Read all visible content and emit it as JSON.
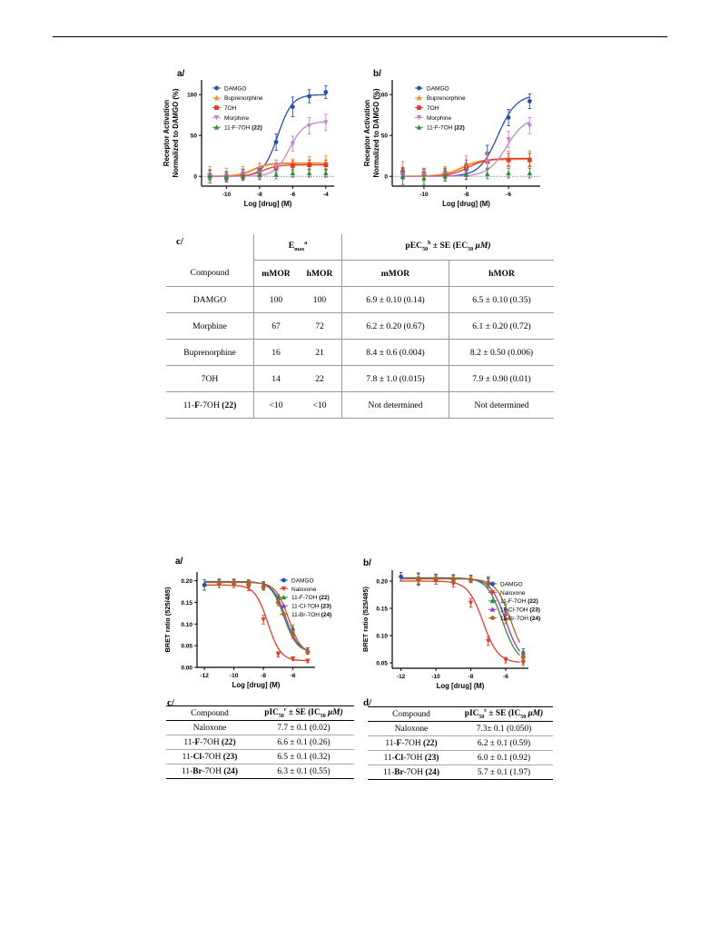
{
  "panels_top": {
    "a": {
      "label": "a/",
      "ylabel1": "Receptor Activation",
      "ylabel2": "Normalized to DAMGO (%)",
      "xlabel": "Log [drug] (M)",
      "legend": [
        "DAMGO",
        "Buprenorphine",
        "7OH",
        "Morphine",
        "11-F-7OH (22)"
      ]
    },
    "b": {
      "label": "b/",
      "ylabel1": "Receptor Activation",
      "ylabel2": "Normalized to DAMGO (%)",
      "xlabel": "Log [drug] (M)",
      "legend": [
        "DAMGO",
        "Buprenorphine",
        "7OH",
        "Morphine",
        "11-F-7OH (22)"
      ]
    }
  },
  "panels_bottom": {
    "a": {
      "label": "a/",
      "ylabel": "BRET ratio (525/485)",
      "xlabel": "Log [drug] (M)",
      "legend": [
        "DAMGO",
        "Naloxone",
        "11-F-7OH (22)",
        "11-Cl-7OH (23)",
        "11-Br-7OH (24)"
      ]
    },
    "b": {
      "label": "b/",
      "ylabel": "BRET ratio (525/485)",
      "xlabel": "Log [drug] (M)",
      "legend": [
        "DAMGO",
        "Naloxone",
        "11-F-7OH (22)",
        "11-Cl-7OH (23)",
        "11-Br-7OH (24)"
      ]
    }
  },
  "colors": {
    "damgo": "#2b4fa8",
    "buprenorphine": "#f08a2c",
    "oh7": "#e03c2c",
    "morphine": "#c085cf",
    "f7oh": "#2e8b3a",
    "cl7oh": "#8e3bb5",
    "br7oh": "#b0651e"
  },
  "chart_data": [
    {
      "type": "line",
      "panel": "a/",
      "xlabel": "Log [drug] (M)",
      "ylabel": "Receptor Activation Normalized to DAMGO (%)",
      "xlim": [
        -11.5,
        -3.5
      ],
      "ylim": [
        -12,
        118
      ],
      "xticks": [
        -10,
        -8,
        -6,
        -4
      ],
      "yticks": [
        0,
        50,
        100
      ],
      "legend_position": "top-left",
      "series": [
        {
          "name": "DAMGO",
          "x": [
            -11,
            -10,
            -9,
            -8,
            -7,
            -6,
            -5,
            -4
          ],
          "y": [
            2,
            1,
            3,
            8,
            42,
            85,
            98,
            103
          ],
          "err": [
            6,
            5,
            6,
            8,
            10,
            12,
            8,
            8
          ]
        },
        {
          "name": "Buprenorphine",
          "x": [
            -11,
            -10,
            -9,
            -8,
            -7,
            -6,
            -5,
            -4
          ],
          "y": [
            2,
            2,
            4,
            8,
            12,
            14,
            16,
            16
          ],
          "err": [
            10,
            8,
            8,
            8,
            8,
            7,
            8,
            9
          ]
        },
        {
          "name": "7OH",
          "x": [
            -11,
            -10,
            -9,
            -8,
            -7,
            -6,
            -5,
            -4
          ],
          "y": [
            1,
            0,
            2,
            5,
            10,
            13,
            14,
            14
          ],
          "err": [
            6,
            5,
            5,
            6,
            6,
            6,
            6,
            6
          ]
        },
        {
          "name": "Morphine",
          "x": [
            -11,
            -10,
            -9,
            -8,
            -7,
            -6,
            -5,
            -4
          ],
          "y": [
            1,
            0,
            2,
            4,
            12,
            40,
            62,
            66
          ],
          "err": [
            6,
            6,
            6,
            7,
            8,
            9,
            10,
            10
          ]
        },
        {
          "name": "11-F-7OH (22)",
          "x": [
            -11,
            -10,
            -9,
            -8,
            -7,
            -6,
            -5,
            -4
          ],
          "y": [
            0,
            -1,
            0,
            2,
            2,
            4,
            4,
            4
          ],
          "err": [
            8,
            6,
            5,
            6,
            5,
            5,
            5,
            5
          ]
        }
      ],
      "fits": {
        "DAMGO": {
          "top": 100,
          "ec50": -6.9
        },
        "Buprenorphine": {
          "top": 16,
          "ec50": -8.4
        },
        "7OH": {
          "top": 14,
          "ec50": -7.8
        },
        "Morphine": {
          "top": 67,
          "ec50": -6.2
        }
      }
    },
    {
      "type": "line",
      "panel": "b/",
      "xlabel": "Log [drug] (M)",
      "ylabel": "Receptor Activation Normalized to DAMGO (%)",
      "xlim": [
        -11.5,
        -4.5
      ],
      "ylim": [
        -12,
        118
      ],
      "xticks": [
        -10,
        -8,
        -6
      ],
      "yticks": [
        0,
        50,
        100
      ],
      "legend_position": "top-left",
      "series": [
        {
          "name": "DAMGO",
          "x": [
            -11,
            -10,
            -9,
            -8,
            -7,
            -6,
            -5
          ],
          "y": [
            3,
            2,
            4,
            8,
            28,
            72,
            92
          ],
          "err": [
            6,
            6,
            6,
            8,
            10,
            10,
            9
          ]
        },
        {
          "name": "Buprenorphine",
          "x": [
            -11,
            -10,
            -9,
            -8,
            -7,
            -6,
            -5
          ],
          "y": [
            8,
            2,
            4,
            15,
            20,
            22,
            22
          ],
          "err": [
            10,
            8,
            8,
            10,
            10,
            9,
            9
          ]
        },
        {
          "name": "7OH",
          "x": [
            -11,
            -10,
            -9,
            -8,
            -7,
            -6,
            -5
          ],
          "y": [
            5,
            3,
            4,
            12,
            18,
            20,
            20
          ],
          "err": [
            6,
            6,
            6,
            8,
            8,
            8,
            8
          ]
        },
        {
          "name": "Morphine",
          "x": [
            -11,
            -10,
            -9,
            -8,
            -7,
            -6,
            -5
          ],
          "y": [
            2,
            2,
            3,
            5,
            18,
            45,
            62
          ],
          "err": [
            6,
            6,
            6,
            8,
            10,
            10,
            10
          ]
        },
        {
          "name": "11-F-7OH (22)",
          "x": [
            -11,
            -10,
            -9,
            -8,
            -7,
            -6,
            -5
          ],
          "y": [
            0,
            -2,
            1,
            2,
            3,
            4,
            4
          ],
          "err": [
            10,
            8,
            7,
            6,
            6,
            6,
            6
          ]
        }
      ],
      "fits": {
        "DAMGO": {
          "top": 100,
          "ec50": -6.5
        },
        "Buprenorphine": {
          "top": 21,
          "ec50": -8.2
        },
        "7OH": {
          "top": 22,
          "ec50": -7.9
        },
        "Morphine": {
          "top": 72,
          "ec50": -6.1
        }
      }
    },
    {
      "type": "line",
      "panel": "a/",
      "xlabel": "Log [drug] (M)",
      "ylabel": "BRET ratio (525/485)",
      "xlim": [
        -12.5,
        -4.5
      ],
      "ylim": [
        0.0,
        0.22
      ],
      "xticks": [
        -12,
        -10,
        -8,
        -6
      ],
      "yticks": [
        0.0,
        0.05,
        0.1,
        0.15,
        0.2
      ],
      "legend_position": "top-right",
      "series": [
        {
          "name": "DAMGO",
          "x": [
            -12
          ],
          "y": [
            0.19
          ],
          "err": [
            0.012
          ]
        },
        {
          "name": "Naloxone",
          "x": [
            -11,
            -10,
            -9,
            -8,
            -7,
            -6,
            -5
          ],
          "y": [
            0.19,
            0.19,
            0.185,
            0.11,
            0.03,
            0.02,
            0.015
          ],
          "err": [
            0.006,
            0.006,
            0.008,
            0.01,
            0.006,
            0.004,
            0.004
          ]
        },
        {
          "name": "11-F-7OH (22)",
          "x": [
            -11,
            -10,
            -9,
            -8,
            -7,
            -6,
            -5
          ],
          "y": [
            0.198,
            0.198,
            0.196,
            0.19,
            0.16,
            0.09,
            0.04
          ],
          "err": [
            0.006,
            0.006,
            0.006,
            0.008,
            0.008,
            0.008,
            0.005
          ]
        },
        {
          "name": "11-Cl-7OH (23)",
          "x": [
            -11,
            -10,
            -9,
            -8,
            -7,
            -6,
            -5
          ],
          "y": [
            0.197,
            0.197,
            0.195,
            0.188,
            0.155,
            0.08,
            0.04
          ],
          "err": [
            0.006,
            0.006,
            0.006,
            0.008,
            0.008,
            0.008,
            0.005
          ]
        },
        {
          "name": "11-Br-7OH (24)",
          "x": [
            -11,
            -10,
            -9,
            -8,
            -7,
            -6,
            -5
          ],
          "y": [
            0.196,
            0.196,
            0.194,
            0.186,
            0.15,
            0.075,
            0.035
          ],
          "err": [
            0.006,
            0.006,
            0.006,
            0.008,
            0.008,
            0.008,
            0.005
          ]
        }
      ],
      "fits": {
        "Naloxone": {
          "top": 0.19,
          "bottom": 0.015,
          "ic50": -7.7
        },
        "11-F-7OH (22)": {
          "top": 0.198,
          "bottom": 0.035,
          "ic50": -6.6
        },
        "11-Cl-7OH (23)": {
          "top": 0.197,
          "bottom": 0.035,
          "ic50": -6.5
        },
        "11-Br-7OH (24)": {
          "top": 0.196,
          "bottom": 0.03,
          "ic50": -6.3
        }
      }
    },
    {
      "type": "line",
      "panel": "b/",
      "xlabel": "Log [drug] (M)",
      "ylabel": "BRET ratio (525/485)",
      "xlim": [
        -12.5,
        -4.7
      ],
      "ylim": [
        0.04,
        0.22
      ],
      "xticks": [
        -12,
        -10,
        -8,
        -6
      ],
      "yticks": [
        0.05,
        0.1,
        0.15,
        0.2
      ],
      "legend_position": "top-right",
      "series": [
        {
          "name": "DAMGO",
          "x": [
            -12
          ],
          "y": [
            0.208
          ],
          "err": [
            0.008
          ]
        },
        {
          "name": "Naloxone",
          "x": [
            -11,
            -10,
            -9,
            -8,
            -7,
            -6,
            -5
          ],
          "y": [
            0.2,
            0.2,
            0.195,
            0.16,
            0.09,
            0.055,
            0.05
          ],
          "err": [
            0.008,
            0.006,
            0.006,
            0.008,
            0.008,
            0.005,
            0.005
          ]
        },
        {
          "name": "11-F-7OH (22)",
          "x": [
            -11,
            -10,
            -9,
            -8,
            -7,
            -6,
            -5
          ],
          "y": [
            0.205,
            0.207,
            0.206,
            0.205,
            0.2,
            0.15,
            0.07
          ],
          "err": [
            0.01,
            0.006,
            0.006,
            0.006,
            0.008,
            0.008,
            0.006
          ]
        },
        {
          "name": "11-Cl-7OH (23)",
          "x": [
            -11,
            -10,
            -9,
            -8,
            -7,
            -6,
            -5
          ],
          "y": [
            0.204,
            0.206,
            0.205,
            0.204,
            0.198,
            0.14,
            0.065
          ],
          "err": [
            0.01,
            0.006,
            0.006,
            0.006,
            0.008,
            0.008,
            0.006
          ]
        },
        {
          "name": "11-Br-7OH (24)",
          "x": [
            -11,
            -10,
            -9,
            -8,
            -7,
            -6,
            -5
          ],
          "y": [
            0.203,
            0.205,
            0.204,
            0.203,
            0.196,
            0.13,
            0.06
          ],
          "err": [
            0.01,
            0.006,
            0.006,
            0.006,
            0.008,
            0.008,
            0.006
          ]
        }
      ],
      "fits": {
        "Naloxone": {
          "top": 0.2,
          "bottom": 0.05,
          "ic50": -7.3
        },
        "11-F-7OH (22)": {
          "top": 0.206,
          "bottom": 0.05,
          "ic50": -6.2
        },
        "11-Cl-7OH (23)": {
          "top": 0.205,
          "bottom": 0.05,
          "ic50": -6.0
        },
        "11-Br-7OH (24)": {
          "top": 0.204,
          "bottom": 0.05,
          "ic50": -5.7
        }
      }
    },
    {
      "type": "table",
      "panel": "c/",
      "header_emax": "E",
      "header_emax_sub": "max",
      "header_emax_sup": "a",
      "header_pec": "pEC",
      "header_pec_sub": "50",
      "header_pec_sup": "b",
      "header_pec_rest": " ± SE (EC",
      "header_pec_sub2": "50",
      "header_pec_unit": " μM)",
      "columns": [
        "Compound",
        "mMOR",
        "hMOR",
        "mMOR",
        "hMOR"
      ],
      "rows": [
        [
          "DAMGO",
          "100",
          "100",
          "6.9 ± 0.10 (0.14)",
          "6.5 ± 0.10 (0.35)"
        ],
        [
          "Morphine",
          "67",
          "72",
          "6.2 ± 0.20 (0.67)",
          "6.1 ± 0.20 (0.72)"
        ],
        [
          "Buprenorphine",
          "16",
          "21",
          "8.4 ± 0.6 (0.004)",
          "8.2 ± 0.50 (0.006)"
        ],
        [
          "7OH",
          "14",
          "22",
          "7.8 ± 1.0 (0.015)",
          "7.9 ± 0.90 (0.01)"
        ],
        [
          "11-F-7OH (22)",
          "<10",
          "<10",
          "Not determined",
          "Not determined"
        ]
      ]
    },
    {
      "type": "table",
      "panel": "c/",
      "columns": [
        "Compound",
        "pIC50c ± SE (IC50 μM)"
      ],
      "rows": [
        [
          "Naloxone",
          "7.7 ± 0.1 (0.02)"
        ],
        [
          "11-F-7OH (22)",
          "6.6 ± 0.1 (0.26)"
        ],
        [
          "11-Cl-7OH (23)",
          "6.5 ± 0.1 (0.32)"
        ],
        [
          "11-Br-7OH (24)",
          "6.3 ± 0.1 (0.55)"
        ]
      ]
    },
    {
      "type": "table",
      "panel": "d/",
      "columns": [
        "Compound",
        "pIC50c ± SE (IC50 μM)"
      ],
      "rows": [
        [
          "Naloxone",
          "7.3± 0.1 (0.050)"
        ],
        [
          "11-F-7OH (22)",
          "6.2 ± 0.1 (0.59)"
        ],
        [
          "11-Cl-7OH (23)",
          "6.0 ± 0.1 (0.92)"
        ],
        [
          "11-Br-7OH (24)",
          "5.7 ± 0.1 (1.97)"
        ]
      ]
    }
  ],
  "tables": {
    "c_top_label": "c/",
    "c_bottom_label": "c/",
    "d_bottom_label": "d/",
    "t1": {
      "emax": "E",
      "emax_sub": "max",
      "emax_sup": "a",
      "pec": "pEC",
      "pec_sub": "50",
      "pec_sup": "b",
      "pec_rest": " ± SE (EC",
      "pec_sub2": "50",
      "pec_unit": " μM)",
      "col_compound": "Compound",
      "col_m1": "mMOR",
      "col_h1": "hMOR",
      "col_m2": "mMOR",
      "col_h2": "hMOR"
    },
    "t2": {
      "col_compound": "Compound",
      "pic": "pIC",
      "pic_sub": "50",
      "pic_sup": "c",
      "pic_rest": " ± SE (IC",
      "pic_sub2": "50",
      "pic_unit": " μM)"
    },
    "t3": {
      "col_compound": "Compound",
      "pic": "pIC",
      "pic_sub": "50",
      "pic_sup": "c",
      "pic_rest": " ± SE (IC",
      "pic_sub2": "50",
      "pic_unit": " μM)"
    }
  }
}
